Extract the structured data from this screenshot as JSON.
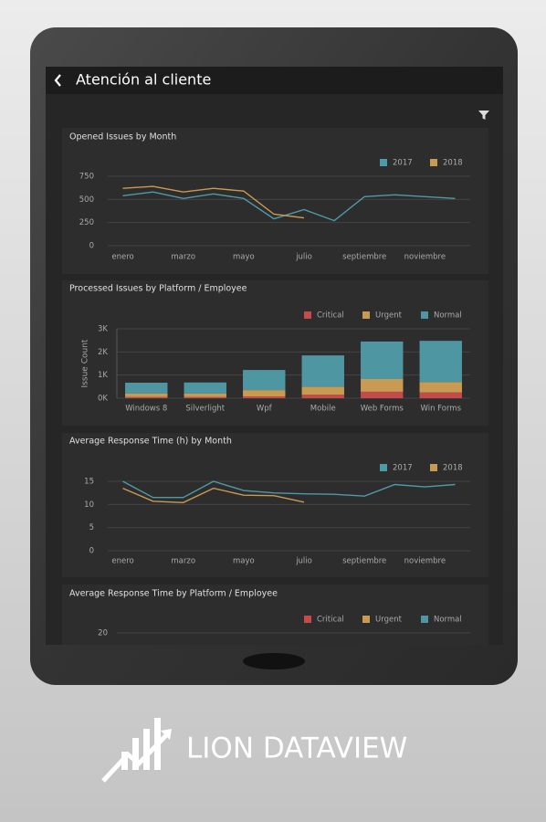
{
  "app_bar": {
    "title": "Atención al cliente"
  },
  "charts": [
    {
      "type": "line",
      "title": "Opened Issues by Month",
      "categories": [
        "enero",
        null,
        "marzo",
        null,
        "mayo",
        null,
        "julio",
        null,
        "septiembre",
        null,
        "noviembre",
        null
      ],
      "series": [
        {
          "name": "2017",
          "color": "#4f9aa8",
          "values": [
            540,
            580,
            510,
            560,
            510,
            290,
            390,
            270,
            530,
            550,
            530,
            510
          ]
        },
        {
          "name": "2018",
          "color": "#c99a52",
          "values": [
            620,
            640,
            580,
            620,
            590,
            340,
            300,
            null,
            null,
            null,
            null,
            null
          ]
        }
      ],
      "ylim": [
        0,
        750
      ],
      "yticks": [
        0,
        250,
        500,
        750
      ],
      "grid": true
    },
    {
      "type": "bar",
      "stacked": true,
      "title": "Processed Issues by Platform / Employee",
      "y_label": "Issue Count",
      "categories": [
        "Windows 8",
        "Silverlight",
        "Wpf",
        "Mobile",
        "Web Forms",
        "Win Forms"
      ],
      "series": [
        {
          "name": "Critical",
          "color": "#c44b4b",
          "values": [
            50,
            50,
            80,
            150,
            280,
            250
          ]
        },
        {
          "name": "Urgent",
          "color": "#c99a52",
          "values": [
            150,
            150,
            270,
            350,
            550,
            450
          ]
        },
        {
          "name": "Normal",
          "color": "#4f96a3",
          "values": [
            470,
            480,
            870,
            1350,
            1620,
            1780
          ]
        }
      ],
      "ylim": [
        0,
        3000
      ],
      "yticks": [
        {
          "value": 0,
          "label": "0K"
        },
        {
          "value": 1000,
          "label": "1K"
        },
        {
          "value": 2000,
          "label": "2K"
        },
        {
          "value": 3000,
          "label": "3K"
        }
      ],
      "grid": true
    },
    {
      "type": "line",
      "title": "Average Response Time (h) by Month",
      "categories": [
        "enero",
        null,
        "marzo",
        null,
        "mayo",
        null,
        "julio",
        null,
        "septiembre",
        null,
        "noviembre",
        null
      ],
      "series": [
        {
          "name": "2017",
          "color": "#4f9aa8",
          "values": [
            15,
            11.5,
            11.5,
            15,
            13,
            12.5,
            12.3,
            12.2,
            11.8,
            14.3,
            13.8,
            14.3
          ]
        },
        {
          "name": "2018",
          "color": "#c99a52",
          "values": [
            13.5,
            10.7,
            10.4,
            13.5,
            12,
            11.9,
            10.5,
            null,
            null,
            null,
            null,
            null
          ]
        }
      ],
      "ylim": [
        0,
        15
      ],
      "yticks": [
        0,
        5,
        10,
        15
      ],
      "grid": true
    },
    {
      "type": "bar",
      "stacked": true,
      "title": "Average Response Time by Platform / Employee",
      "series": [
        {
          "name": "Critical",
          "color": "#c44b4b"
        },
        {
          "name": "Urgent",
          "color": "#c99a52"
        },
        {
          "name": "Normal",
          "color": "#4f96a3"
        }
      ],
      "ylim": [
        0,
        20
      ],
      "yticks": [
        20
      ],
      "grid": true
    }
  ],
  "brand": {
    "name": "LION DATAVIEW"
  }
}
